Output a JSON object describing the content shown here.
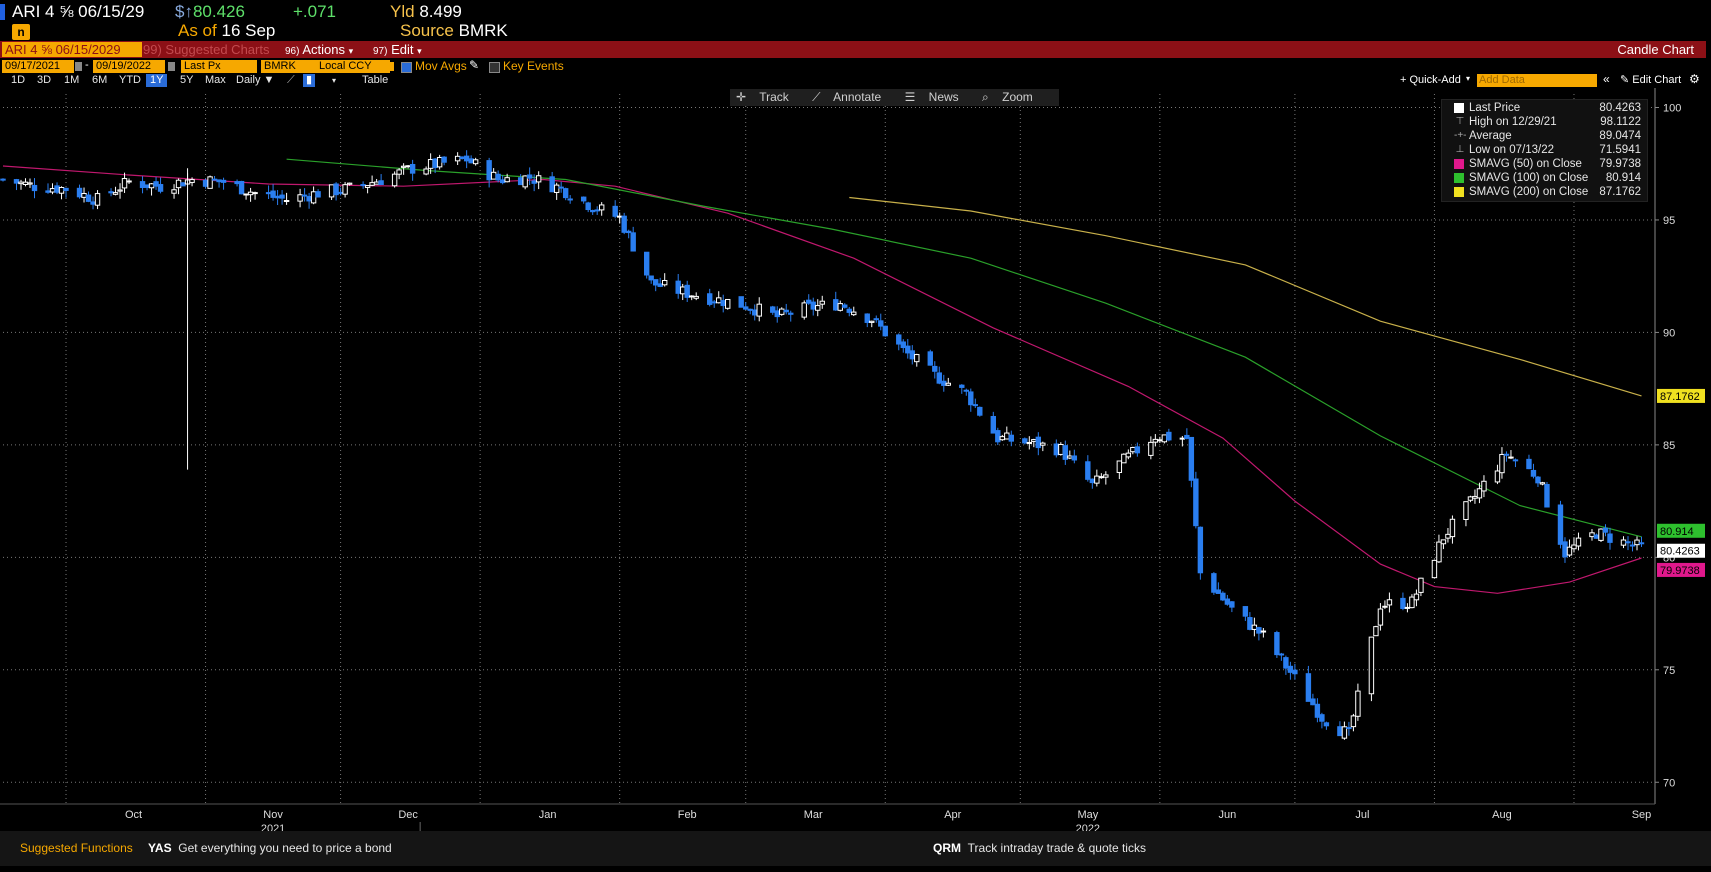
{
  "header": {
    "ticker": "ARI 4 ⅝ 06/15/29",
    "price_prefix": "$↑",
    "price": "80.426",
    "change": "+.071",
    "yld_label": "Yld",
    "yld_value": "8.499",
    "asof_label": "As of",
    "asof_value": "16 Sep",
    "source_label": "Source",
    "source_value": "BMRK"
  },
  "redbar": {
    "ticker": "ARI 4 ⅝ 06/15/2029",
    "suggested": "99) Suggested Charts",
    "actions_num": "96)",
    "actions": "Actions",
    "edit_num": "97)",
    "edit": "Edit",
    "title": "Candle Chart"
  },
  "controls": {
    "start_date": "09/17/2021",
    "end_date": "09/19/2022",
    "field": "Last Px",
    "source": "BMRK",
    "ccy": "Local CCY",
    "mov_avgs": "Mov Avgs",
    "key_events": "Key Events",
    "periods": [
      "1D",
      "3D",
      "1M",
      "6M",
      "YTD",
      "1Y",
      "5Y",
      "Max"
    ],
    "selected_period": "1Y",
    "frequency": "Daily ▼",
    "table": "Table",
    "quick_add": "+ Quick-Add",
    "add_data_placeholder": "Add Data",
    "edit_chart": "Edit Chart"
  },
  "toolbar": {
    "track": "Track",
    "annotate": "Annotate",
    "news": "News",
    "zoom": "Zoom"
  },
  "legend": [
    {
      "label": "Last Price",
      "value": "80.4263",
      "color": "#ffffff",
      "glyph": "square"
    },
    {
      "label": "High on 12/29/21",
      "value": "98.1122",
      "glyph": "high"
    },
    {
      "label": "Average",
      "value": "89.0474",
      "glyph": "avg"
    },
    {
      "label": "Low on 07/13/22",
      "value": "71.5941",
      "glyph": "low"
    },
    {
      "label": "SMAVG (50)  on Close",
      "value": "79.9738",
      "color": "#e0188c",
      "glyph": "square"
    },
    {
      "label": "SMAVG (100)  on Close",
      "value": "80.914",
      "color": "#2ec02e",
      "glyph": "square"
    },
    {
      "label": "SMAVG (200)  on Close",
      "value": "87.1762",
      "color": "#f0e020",
      "glyph": "square"
    }
  ],
  "footer": {
    "suggested": "Suggested Functions",
    "yas_code": "YAS",
    "yas_desc": "Get everything you need to price a bond",
    "qrm_code": "QRM",
    "qrm_desc": "Track intraday trade & quote ticks"
  },
  "chart_data": {
    "type": "candlestick",
    "y_ticks": [
      70,
      75,
      80,
      85,
      90,
      95,
      100
    ],
    "ylim": [
      69.3,
      100.6
    ],
    "x_range": [
      "2021-09-17",
      "2022-09-19"
    ],
    "month_labels": [
      {
        "label": "Oct",
        "date": "2021-10-01"
      },
      {
        "label": "Nov",
        "date": "2021-11-01"
      },
      {
        "label": "Dec",
        "date": "2021-12-01"
      },
      {
        "label": "Jan",
        "date": "2022-01-01"
      },
      {
        "label": "Feb",
        "date": "2022-02-01"
      },
      {
        "label": "Mar",
        "date": "2022-03-01"
      },
      {
        "label": "Apr",
        "date": "2022-04-01"
      },
      {
        "label": "May",
        "date": "2022-05-01"
      },
      {
        "label": "Jun",
        "date": "2022-06-01"
      },
      {
        "label": "Jul",
        "date": "2022-07-01"
      },
      {
        "label": "Aug",
        "date": "2022-08-01"
      },
      {
        "label": "Sep",
        "date": "2022-09-01"
      }
    ],
    "year_labels": [
      {
        "label": "2021",
        "date": "2021-11-01"
      },
      {
        "label": "2022",
        "date": "2022-05-01"
      }
    ],
    "close_path": [
      [
        "2021-09-17",
        96.8
      ],
      [
        "2021-09-24",
        96.5
      ],
      [
        "2021-10-01",
        96.4
      ],
      [
        "2021-10-08",
        95.9
      ],
      [
        "2021-10-15",
        96.7
      ],
      [
        "2021-10-22",
        96.5
      ],
      [
        "2021-10-29",
        96.8
      ],
      [
        "2021-11-05",
        96.7
      ],
      [
        "2021-11-12",
        96.2
      ],
      [
        "2021-11-19",
        95.9
      ],
      [
        "2021-11-26",
        96.2
      ],
      [
        "2021-12-03",
        96.4
      ],
      [
        "2021-12-10",
        96.8
      ],
      [
        "2021-12-17",
        97.3
      ],
      [
        "2021-12-29",
        97.7
      ],
      [
        "2022-01-05",
        96.8
      ],
      [
        "2022-01-12",
        96.9
      ],
      [
        "2022-01-19",
        96.4
      ],
      [
        "2022-01-26",
        95.6
      ],
      [
        "2022-02-01",
        95.1
      ],
      [
        "2022-02-08",
        92.2
      ],
      [
        "2022-02-15",
        91.8
      ],
      [
        "2022-02-22",
        91.5
      ],
      [
        "2022-03-01",
        91.2
      ],
      [
        "2022-03-08",
        90.7
      ],
      [
        "2022-03-15",
        91.1
      ],
      [
        "2022-03-22",
        91.3
      ],
      [
        "2022-03-29",
        90.6
      ],
      [
        "2022-04-05",
        89.2
      ],
      [
        "2022-04-12",
        88.1
      ],
      [
        "2022-04-19",
        87.3
      ],
      [
        "2022-04-26",
        85.3
      ],
      [
        "2022-05-03",
        85.1
      ],
      [
        "2022-05-10",
        84.8
      ],
      [
        "2022-05-17",
        83.2
      ],
      [
        "2022-05-24",
        84.3
      ],
      [
        "2022-05-31",
        85.4
      ],
      [
        "2022-06-07",
        85.3
      ],
      [
        "2022-06-10",
        79.3
      ],
      [
        "2022-06-17",
        77.7
      ],
      [
        "2022-06-24",
        76.5
      ],
      [
        "2022-06-30",
        74.9
      ],
      [
        "2022-07-07",
        72.9
      ],
      [
        "2022-07-13",
        72.1
      ],
      [
        "2022-07-20",
        77.9
      ],
      [
        "2022-07-27",
        78.0
      ],
      [
        "2022-08-03",
        80.9
      ],
      [
        "2022-08-10",
        82.7
      ],
      [
        "2022-08-17",
        84.6
      ],
      [
        "2022-08-24",
        83.6
      ],
      [
        "2022-08-30",
        80.2
      ],
      [
        "2022-09-06",
        81.1
      ],
      [
        "2022-09-13",
        80.6
      ],
      [
        "2022-09-16",
        80.43
      ]
    ],
    "spike": {
      "date": "2021-10-28",
      "low": 83.9,
      "high": 97.3
    },
    "series": [
      {
        "name": "SMAVG (50) on Close",
        "color": "#c0186e",
        "points": [
          [
            "2021-09-17",
            97.4
          ],
          [
            "2021-10-15",
            97.0
          ],
          [
            "2021-11-15",
            96.6
          ],
          [
            "2021-12-15",
            96.5
          ],
          [
            "2022-01-15",
            96.8
          ],
          [
            "2022-01-31",
            96.5
          ],
          [
            "2022-02-25",
            95.3
          ],
          [
            "2022-03-25",
            93.3
          ],
          [
            "2022-04-25",
            90.2
          ],
          [
            "2022-05-25",
            87.6
          ],
          [
            "2022-06-15",
            85.3
          ],
          [
            "2022-07-01",
            82.5
          ],
          [
            "2022-07-20",
            79.7
          ],
          [
            "2022-08-01",
            78.7
          ],
          [
            "2022-08-15",
            78.4
          ],
          [
            "2022-08-31",
            78.9
          ],
          [
            "2022-09-16",
            79.97
          ]
        ]
      },
      {
        "name": "SMAVG (100) on Close",
        "color": "#2aa02a",
        "points": [
          [
            "2021-11-19",
            97.7
          ],
          [
            "2021-12-20",
            97.2
          ],
          [
            "2022-01-20",
            96.8
          ],
          [
            "2022-02-20",
            95.6
          ],
          [
            "2022-03-20",
            94.6
          ],
          [
            "2022-04-20",
            93.3
          ],
          [
            "2022-05-20",
            91.3
          ],
          [
            "2022-06-20",
            88.9
          ],
          [
            "2022-07-20",
            85.4
          ],
          [
            "2022-08-20",
            82.3
          ],
          [
            "2022-09-16",
            80.914
          ]
        ]
      },
      {
        "name": "SMAVG (200) on Close",
        "color": "#c8b04a",
        "points": [
          [
            "2022-03-24",
            96.0
          ],
          [
            "2022-04-20",
            95.4
          ],
          [
            "2022-05-20",
            94.3
          ],
          [
            "2022-06-20",
            93.0
          ],
          [
            "2022-07-20",
            90.5
          ],
          [
            "2022-08-20",
            88.8
          ],
          [
            "2022-09-16",
            87.1762
          ]
        ]
      }
    ],
    "right_labels": [
      {
        "text": "87.1762",
        "value": 87.1762,
        "bg": "#f0e020",
        "fg": "#000"
      },
      {
        "text": "80.914",
        "value": 80.914,
        "bg": "#2ec02e",
        "fg": "#000"
      },
      {
        "text": "80.4263",
        "value": 80.4263,
        "bg": "#ffffff",
        "fg": "#000"
      },
      {
        "text": "79.9738",
        "value": 79.9738,
        "bg": "#e0188c",
        "fg": "#000"
      }
    ]
  }
}
